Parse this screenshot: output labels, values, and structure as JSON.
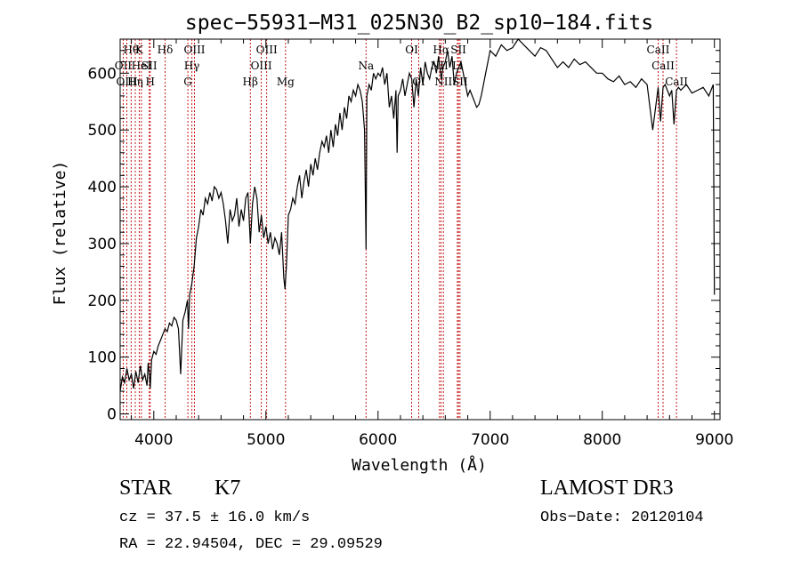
{
  "chart_data": {
    "type": "line",
    "title": "spec−55931−M31_025N30_B2_sp10−184.fits",
    "xlabel": "Wavelength (Å)",
    "ylabel": "Flux (relative)",
    "xlim": [
      3700,
      9050
    ],
    "ylim": [
      -10,
      660
    ],
    "xticks": [
      4000,
      5000,
      6000,
      7000,
      8000,
      9000
    ],
    "yticks": [
      0,
      100,
      200,
      300,
      400,
      500,
      600
    ],
    "series": [
      {
        "name": "flux",
        "x": [
          3700,
          3720,
          3740,
          3760,
          3780,
          3800,
          3820,
          3840,
          3860,
          3880,
          3900,
          3920,
          3940,
          3950,
          3960,
          3968,
          3980,
          4000,
          4020,
          4040,
          4060,
          4080,
          4100,
          4120,
          4140,
          4160,
          4180,
          4200,
          4220,
          4240,
          4260,
          4280,
          4300,
          4310,
          4320,
          4340,
          4360,
          4380,
          4400,
          4420,
          4440,
          4460,
          4480,
          4500,
          4520,
          4540,
          4560,
          4580,
          4600,
          4620,
          4640,
          4660,
          4680,
          4700,
          4720,
          4740,
          4760,
          4780,
          4800,
          4820,
          4840,
          4861,
          4880,
          4900,
          4920,
          4940,
          4960,
          4980,
          5000,
          5020,
          5040,
          5060,
          5080,
          5100,
          5120,
          5140,
          5160,
          5170,
          5183,
          5200,
          5220,
          5240,
          5260,
          5280,
          5300,
          5320,
          5340,
          5360,
          5380,
          5400,
          5420,
          5440,
          5460,
          5480,
          5500,
          5520,
          5540,
          5560,
          5580,
          5600,
          5620,
          5640,
          5660,
          5680,
          5700,
          5720,
          5740,
          5760,
          5780,
          5800,
          5820,
          5840,
          5860,
          5880,
          5893,
          5900,
          5920,
          5940,
          5960,
          5980,
          6000,
          6020,
          6040,
          6060,
          6080,
          6100,
          6120,
          6140,
          6160,
          6170,
          6180,
          6200,
          6220,
          6240,
          6260,
          6280,
          6300,
          6320,
          6340,
          6360,
          6380,
          6400,
          6420,
          6440,
          6460,
          6480,
          6500,
          6520,
          6540,
          6563,
          6580,
          6600,
          6620,
          6640,
          6660,
          6680,
          6700,
          6720,
          6740,
          6760,
          6780,
          6800,
          6820,
          6840,
          6860,
          6880,
          6900,
          6920,
          6940,
          6960,
          6980,
          7000,
          7050,
          7100,
          7150,
          7200,
          7250,
          7300,
          7350,
          7400,
          7450,
          7500,
          7550,
          7600,
          7650,
          7700,
          7750,
          7800,
          7850,
          7900,
          7950,
          8000,
          8050,
          8100,
          8150,
          8200,
          8250,
          8300,
          8350,
          8400,
          8450,
          8498,
          8520,
          8542,
          8560,
          8600,
          8620,
          8640,
          8662,
          8680,
          8700,
          8750,
          8800,
          8850,
          8900,
          8950,
          8990,
          9000
        ],
        "values": [
          40,
          65,
          55,
          80,
          60,
          70,
          45,
          75,
          55,
          85,
          60,
          70,
          50,
          90,
          70,
          45,
          95,
          110,
          105,
          120,
          130,
          140,
          150,
          145,
          160,
          155,
          170,
          165,
          150,
          70,
          165,
          180,
          200,
          150,
          210,
          230,
          260,
          310,
          330,
          360,
          350,
          380,
          370,
          390,
          375,
          400,
          395,
          380,
          390,
          370,
          340,
          300,
          360,
          340,
          350,
          380,
          330,
          360,
          340,
          380,
          390,
          300,
          370,
          400,
          380,
          320,
          350,
          310,
          330,
          300,
          320,
          290,
          310,
          300,
          280,
          320,
          240,
          220,
          260,
          350,
          360,
          380,
          370,
          400,
          420,
          380,
          410,
          430,
          400,
          440,
          420,
          450,
          430,
          460,
          480,
          470,
          490,
          460,
          500,
          470,
          510,
          490,
          530,
          500,
          540,
          520,
          560,
          550,
          570,
          560,
          580,
          570,
          550,
          500,
          290,
          560,
          580,
          570,
          600,
          590,
          600,
          595,
          610,
          580,
          600,
          540,
          560,
          520,
          570,
          460,
          560,
          570,
          590,
          560,
          580,
          600,
          590,
          540,
          590,
          560,
          610,
          580,
          620,
          600,
          590,
          610,
          620,
          600,
          630,
          590,
          610,
          620,
          640,
          610,
          630,
          580,
          600,
          610,
          620,
          600,
          580,
          560,
          570,
          560,
          550,
          540,
          545,
          560,
          580,
          600,
          620,
          640,
          630,
          650,
          640,
          645,
          660,
          650,
          640,
          630,
          645,
          640,
          625,
          610,
          620,
          610,
          625,
          615,
          620,
          610,
          600,
          600,
          590,
          585,
          595,
          580,
          585,
          575,
          590,
          580,
          500,
          575,
          515,
          575,
          580,
          560,
          570,
          510,
          570,
          575,
          570,
          580,
          565,
          570,
          575,
          560,
          580,
          210
        ]
      }
    ],
    "lines": [
      {
        "name": "Hθ",
        "x": 3798,
        "row": 1
      },
      {
        "name": "OII",
        "x": 3727,
        "row": 2
      },
      {
        "name": "OIII",
        "x": 3760,
        "row": 3
      },
      {
        "name": "Hη",
        "x": 3835,
        "row": 3
      },
      {
        "name": "K",
        "x": 3870,
        "row": 1
      },
      {
        "name": "HeI",
        "x": 3889,
        "row": 2
      },
      {
        "name": "SII",
        "x": 3960,
        "row": 2
      },
      {
        "name": "H",
        "x": 3968,
        "row": 3
      },
      {
        "name": "Hδ",
        "x": 4101,
        "row": 1
      },
      {
        "name": "OIII",
        "x": 4363,
        "row": 1
      },
      {
        "name": "Hγ",
        "x": 4340,
        "row": 2
      },
      {
        "name": "G",
        "x": 4304,
        "row": 3
      },
      {
        "name": "Hβ",
        "x": 4861,
        "row": 3
      },
      {
        "name": "OIII",
        "x": 5007,
        "row": 1
      },
      {
        "name": "OIII",
        "x": 4959,
        "row": 2
      },
      {
        "name": "Mg",
        "x": 5175,
        "row": 3
      },
      {
        "name": "Na",
        "x": 5893,
        "row": 2
      },
      {
        "name": "OI",
        "x": 6300,
        "row": 1
      },
      {
        "name": "OI",
        "x": 6363,
        "row": 3
      },
      {
        "name": "Hα",
        "x": 6563,
        "row": 1
      },
      {
        "name": "NII",
        "x": 6548,
        "row": 2
      },
      {
        "name": "NII",
        "x": 6583,
        "row": 3
      },
      {
        "name": "SII",
        "x": 6717,
        "row": 1
      },
      {
        "name": "Li",
        "x": 6708,
        "row": 2
      },
      {
        "name": "SII",
        "x": 6731,
        "row": 3
      },
      {
        "name": "CaII",
        "x": 8498,
        "row": 1
      },
      {
        "name": "CaII",
        "x": 8542,
        "row": 2
      },
      {
        "name": "CaII",
        "x": 8662,
        "row": 3
      }
    ]
  },
  "info": {
    "object_class": "STAR",
    "subclass": "K7",
    "survey": "LAMOST DR3",
    "cz": "cz = 37.5 ± 16.0 km/s",
    "obs_date": "Obs−Date: 20120104",
    "coords": "RA =  22.94504, DEC =  29.09529"
  }
}
